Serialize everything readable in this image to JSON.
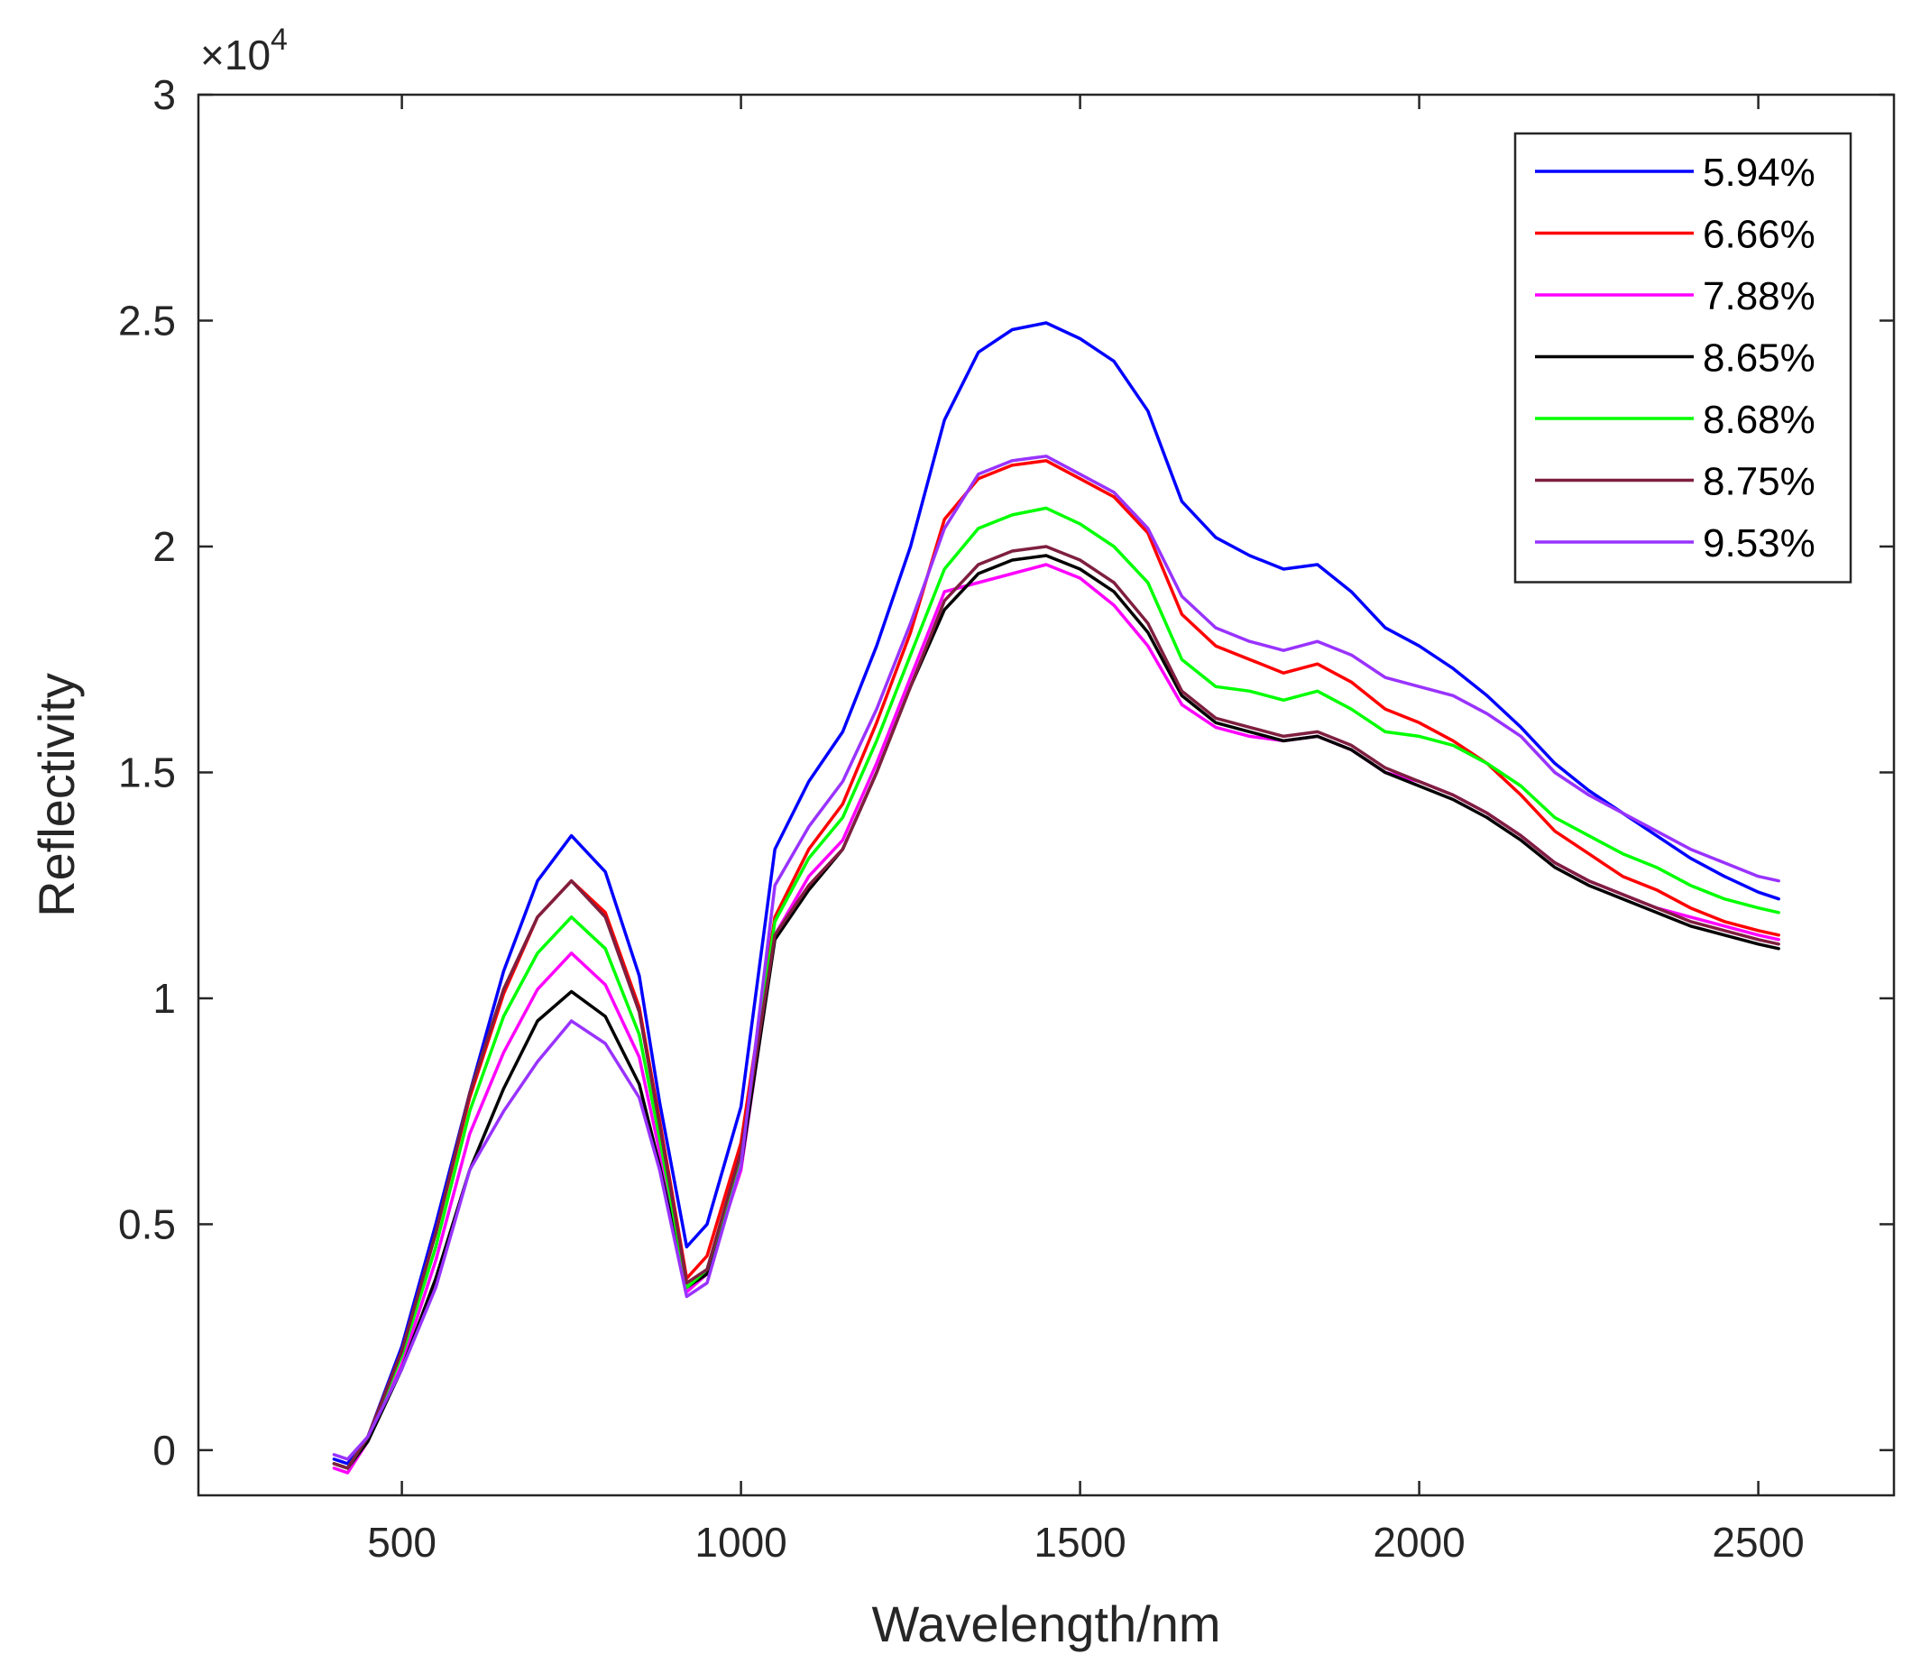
{
  "chart_data": {
    "type": "line",
    "xlabel": "Wavelength/nm",
    "ylabel": "Reflectivity",
    "xlim": [
      200,
      2700
    ],
    "ylim": [
      -1000,
      30000
    ],
    "xticks": [
      500,
      1000,
      1500,
      2000,
      2500
    ],
    "xtick_labels": [
      "500",
      "1000",
      "1500",
      "2000",
      "2500"
    ],
    "yticks": [
      0,
      5000,
      10000,
      15000,
      20000,
      25000,
      30000
    ],
    "ytick_labels": [
      "0",
      "0.5",
      "1",
      "1.5",
      "2",
      "2.5",
      "3"
    ],
    "y_exponent": {
      "base": "×10",
      "power": "4"
    },
    "grid": false,
    "legend_position": "top-right",
    "x": [
      400,
      420,
      450,
      500,
      550,
      600,
      650,
      700,
      750,
      800,
      850,
      880,
      920,
      950,
      1000,
      1050,
      1100,
      1150,
      1200,
      1250,
      1300,
      1350,
      1400,
      1450,
      1500,
      1550,
      1600,
      1650,
      1700,
      1750,
      1800,
      1850,
      1900,
      1950,
      2000,
      2050,
      2100,
      2150,
      2200,
      2250,
      2300,
      2350,
      2400,
      2450,
      2500,
      2530
    ],
    "series": [
      {
        "name": "5.94%",
        "color": "#0000ff",
        "values": [
          -200,
          -300,
          300,
          2300,
          5000,
          7900,
          10600,
          12600,
          13600,
          12800,
          10500,
          7700,
          4500,
          5000,
          7600,
          13300,
          14800,
          15900,
          17800,
          20000,
          22800,
          24300,
          24800,
          24950,
          24600,
          24100,
          23000,
          21000,
          20200,
          19800,
          19500,
          19600,
          19000,
          18200,
          17800,
          17300,
          16700,
          16000,
          15200,
          14600,
          14100,
          13600,
          13100,
          12700,
          12350,
          12200
        ]
      },
      {
        "name": "6.66%",
        "color": "#ff0000",
        "values": [
          -300,
          -400,
          300,
          2200,
          4800,
          7800,
          10100,
          11800,
          12600,
          11900,
          9800,
          7300,
          3800,
          4300,
          6800,
          11800,
          13300,
          14300,
          16100,
          18100,
          20600,
          21500,
          21800,
          21900,
          21500,
          21100,
          20300,
          18500,
          17800,
          17500,
          17200,
          17400,
          17000,
          16400,
          16100,
          15700,
          15200,
          14500,
          13700,
          13200,
          12700,
          12400,
          12000,
          11700,
          11500,
          11400
        ]
      },
      {
        "name": "7.88%",
        "color": "#ff00ff",
        "values": [
          -400,
          -500,
          200,
          1900,
          4200,
          7000,
          8800,
          10200,
          11000,
          10300,
          8700,
          6600,
          3500,
          3900,
          6200,
          11400,
          12700,
          13500,
          15200,
          17100,
          19000,
          19200,
          19400,
          19600,
          19300,
          18700,
          17800,
          16500,
          16000,
          15800,
          15700,
          15800,
          15500,
          15000,
          14800,
          14500,
          14100,
          13600,
          13000,
          12600,
          12300,
          12000,
          11800,
          11600,
          11400,
          11300
        ]
      },
      {
        "name": "8.65%",
        "color": "#000000",
        "values": [
          -300,
          -400,
          200,
          1800,
          3800,
          6200,
          8000,
          9500,
          10150,
          9600,
          8100,
          6300,
          3600,
          3900,
          6300,
          11300,
          12400,
          13300,
          15000,
          16900,
          18600,
          19400,
          19700,
          19800,
          19500,
          19000,
          18100,
          16700,
          16100,
          15900,
          15700,
          15800,
          15500,
          15000,
          14700,
          14400,
          14000,
          13500,
          12900,
          12500,
          12200,
          11900,
          11600,
          11400,
          11200,
          11100
        ]
      },
      {
        "name": "8.68%",
        "color": "#00ff00",
        "values": [
          -300,
          -400,
          300,
          2100,
          4500,
          7500,
          9600,
          11000,
          11800,
          11100,
          9200,
          6900,
          3600,
          4000,
          6500,
          11700,
          13100,
          14000,
          15700,
          17600,
          19500,
          20400,
          20700,
          20850,
          20500,
          20000,
          19200,
          17500,
          16900,
          16800,
          16600,
          16800,
          16400,
          15900,
          15800,
          15600,
          15200,
          14700,
          14000,
          13600,
          13200,
          12900,
          12500,
          12200,
          12000,
          11900
        ]
      },
      {
        "name": "8.75%",
        "color": "#7f1f3f",
        "values": [
          -300,
          -400,
          300,
          2200,
          4800,
          7900,
          10200,
          11800,
          12600,
          11800,
          9700,
          7200,
          3700,
          4000,
          6600,
          11400,
          12500,
          13300,
          15000,
          16900,
          18800,
          19600,
          19900,
          20000,
          19700,
          19200,
          18300,
          16800,
          16200,
          16000,
          15800,
          15900,
          15600,
          15100,
          14800,
          14500,
          14100,
          13600,
          13000,
          12600,
          12300,
          12000,
          11700,
          11500,
          11300,
          11200
        ]
      },
      {
        "name": "9.53%",
        "color": "#9933ff",
        "values": [
          -100,
          -200,
          300,
          1800,
          3600,
          6200,
          7500,
          8600,
          9500,
          9000,
          7800,
          6200,
          3400,
          3700,
          6300,
          12500,
          13800,
          14800,
          16400,
          18300,
          20400,
          21600,
          21900,
          22000,
          21600,
          21200,
          20400,
          18900,
          18200,
          17900,
          17700,
          17900,
          17600,
          17100,
          16900,
          16700,
          16300,
          15800,
          15000,
          14500,
          14100,
          13700,
          13300,
          13000,
          12700,
          12600
        ]
      }
    ]
  }
}
